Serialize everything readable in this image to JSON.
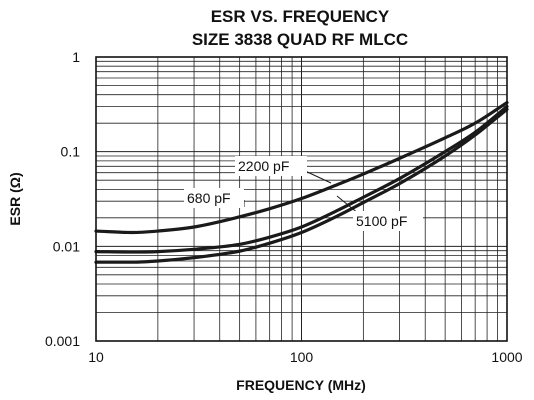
{
  "chart_data": {
    "type": "line",
    "title": "ESR VS. FREQUENCY",
    "subtitle": "SIZE 3838 QUAD RF MLCC",
    "xlabel": "FREQUENCY (MHz)",
    "ylabel": "ESR (Ω)",
    "x_scale": "log",
    "y_scale": "log",
    "xlim": [
      10,
      1000
    ],
    "ylim": [
      0.001,
      1
    ],
    "x_ticks": [
      {
        "value": 10,
        "label": "10"
      },
      {
        "value": 100,
        "label": "100"
      },
      {
        "value": 1000,
        "label": "1000"
      }
    ],
    "y_ticks": [
      {
        "value": 1,
        "label": "1"
      },
      {
        "value": 0.1,
        "label": "0.1"
      },
      {
        "value": 0.01,
        "label": "0.01"
      },
      {
        "value": 0.001,
        "label": "0.001"
      }
    ],
    "grid": true,
    "legend": "none",
    "series": [
      {
        "name": "2200 pF",
        "x": [
          10,
          15,
          20,
          30,
          50,
          70,
          100,
          150,
          200,
          300,
          500,
          700,
          1000
        ],
        "y": [
          0.0145,
          0.014,
          0.0145,
          0.016,
          0.0205,
          0.025,
          0.032,
          0.045,
          0.058,
          0.085,
          0.14,
          0.2,
          0.33
        ]
      },
      {
        "name": "680 pF",
        "x": [
          10,
          15,
          20,
          30,
          50,
          70,
          100,
          150,
          200,
          300,
          500,
          700,
          1000
        ],
        "y": [
          0.0088,
          0.0087,
          0.0088,
          0.0093,
          0.0105,
          0.0125,
          0.016,
          0.024,
          0.033,
          0.052,
          0.1,
          0.16,
          0.3
        ]
      },
      {
        "name": "5100 pF",
        "x": [
          10,
          15,
          20,
          30,
          50,
          70,
          100,
          150,
          200,
          300,
          500,
          700,
          1000
        ],
        "y": [
          0.0068,
          0.0068,
          0.007,
          0.0076,
          0.0089,
          0.0108,
          0.014,
          0.021,
          0.029,
          0.046,
          0.09,
          0.15,
          0.28
        ]
      }
    ],
    "annotations": [
      {
        "text": "2200 pF"
      },
      {
        "text": "680 pF"
      },
      {
        "text": "5100 pF"
      }
    ]
  }
}
